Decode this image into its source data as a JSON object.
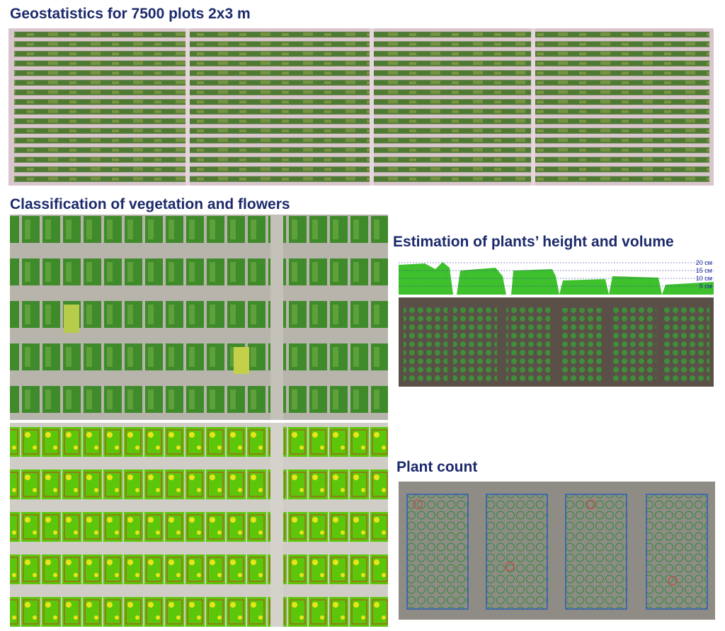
{
  "sections": [
    {
      "title": "Geostatistics for 7500 plots 2x3 m"
    },
    {
      "title": "Classification of vegetation and flowers"
    },
    {
      "title": "Estimation of plants’ height and volume",
      "scale_labels": [
        "20 см",
        "15 см",
        "10 см",
        "5 см"
      ]
    },
    {
      "title": "Plant count"
    }
  ]
}
